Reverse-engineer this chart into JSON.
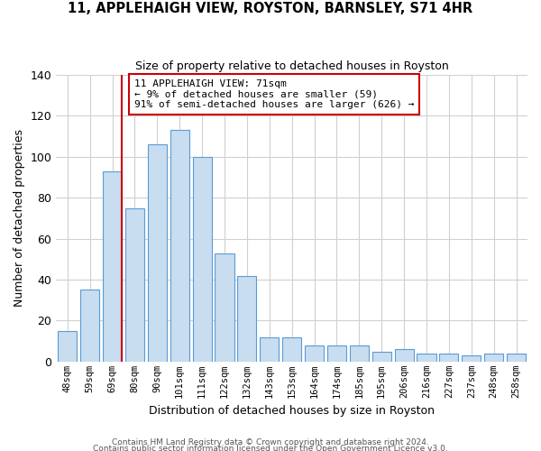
{
  "title1": "11, APPLEHAIGH VIEW, ROYSTON, BARNSLEY, S71 4HR",
  "title2": "Size of property relative to detached houses in Royston",
  "xlabel": "Distribution of detached houses by size in Royston",
  "ylabel": "Number of detached properties",
  "bar_labels": [
    "48sqm",
    "59sqm",
    "69sqm",
    "80sqm",
    "90sqm",
    "101sqm",
    "111sqm",
    "122sqm",
    "132sqm",
    "143sqm",
    "153sqm",
    "164sqm",
    "174sqm",
    "185sqm",
    "195sqm",
    "206sqm",
    "216sqm",
    "227sqm",
    "237sqm",
    "248sqm",
    "258sqm"
  ],
  "bar_heights": [
    15,
    35,
    93,
    75,
    106,
    113,
    100,
    53,
    42,
    12,
    12,
    8,
    8,
    8,
    5,
    6,
    4,
    4,
    3,
    4,
    4
  ],
  "bar_color": "#c8ddf0",
  "bar_edge_color": "#5b9bd5",
  "marker_label": "11 APPLEHAIGH VIEW: 71sqm",
  "annotation_line1": "← 9% of detached houses are smaller (59)",
  "annotation_line2": "91% of semi-detached houses are larger (626) →",
  "vline_color": "#cc0000",
  "vline_x": 2.43,
  "ylim": [
    0,
    140
  ],
  "yticks": [
    0,
    20,
    40,
    60,
    80,
    100,
    120,
    140
  ],
  "footer1": "Contains HM Land Registry data © Crown copyright and database right 2024.",
  "footer2": "Contains public sector information licensed under the Open Government Licence v3.0.",
  "annotation_box_color": "#ffffff",
  "annotation_box_edge": "#cc0000",
  "grid_color": "#d0d0d0"
}
